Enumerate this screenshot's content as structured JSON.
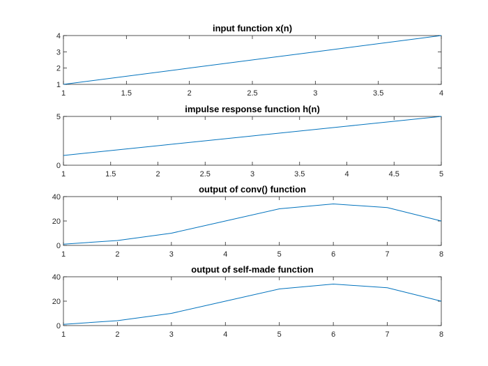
{
  "chart_data": [
    {
      "type": "line",
      "title": "input function x(n)",
      "x": [
        1,
        2,
        3,
        4
      ],
      "y": [
        1,
        2,
        3,
        4
      ],
      "xlim": [
        1,
        4
      ],
      "ylim": [
        1,
        4
      ],
      "xticks": [
        1,
        1.5,
        2,
        2.5,
        3,
        3.5,
        4
      ],
      "yticks": [
        1,
        2,
        3,
        4
      ],
      "grid": false,
      "color": "#0072BD"
    },
    {
      "type": "line",
      "title": "impulse response function h(n)",
      "x": [
        1,
        2,
        3,
        4,
        5
      ],
      "y": [
        1,
        2,
        3,
        4,
        5
      ],
      "xlim": [
        1,
        5
      ],
      "ylim": [
        0,
        5
      ],
      "xticks": [
        1,
        1.5,
        2,
        2.5,
        3,
        3.5,
        4,
        4.5,
        5
      ],
      "yticks": [
        0,
        5
      ],
      "grid": false,
      "color": "#0072BD"
    },
    {
      "type": "line",
      "title": "output of conv() function",
      "x": [
        1,
        2,
        3,
        4,
        5,
        6,
        7,
        8
      ],
      "y": [
        1,
        4,
        10,
        20,
        30,
        34,
        31,
        20
      ],
      "xlim": [
        1,
        8
      ],
      "ylim": [
        0,
        40
      ],
      "xticks": [
        1,
        2,
        3,
        4,
        5,
        6,
        7,
        8
      ],
      "yticks": [
        0,
        20,
        40
      ],
      "grid": false,
      "color": "#0072BD"
    },
    {
      "type": "line",
      "title": "output of self-made function",
      "x": [
        1,
        2,
        3,
        4,
        5,
        6,
        7,
        8
      ],
      "y": [
        1,
        4,
        10,
        20,
        30,
        34,
        31,
        20
      ],
      "xlim": [
        1,
        8
      ],
      "ylim": [
        0,
        40
      ],
      "xticks": [
        1,
        2,
        3,
        4,
        5,
        6,
        7,
        8
      ],
      "yticks": [
        0,
        20,
        40
      ],
      "grid": false,
      "color": "#0072BD"
    }
  ]
}
